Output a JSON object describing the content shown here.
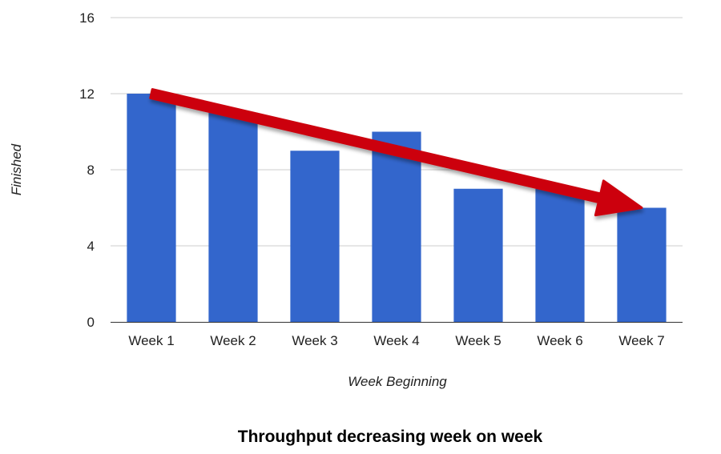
{
  "chart_data": {
    "type": "bar",
    "title": "Throughput decreasing week on week",
    "xlabel": "Week Beginning",
    "ylabel": "Finished",
    "categories": [
      "Week 1",
      "Week 2",
      "Week 3",
      "Week 4",
      "Week 5",
      "Week 6",
      "Week 7"
    ],
    "values": [
      12,
      11,
      9,
      10,
      7,
      7,
      6
    ],
    "ylim": [
      0,
      16
    ],
    "yticks": [
      0,
      4,
      8,
      12,
      16
    ],
    "grid": true,
    "legend": "none",
    "bar_color": "#3366CC",
    "annotation": {
      "type": "trend-arrow",
      "from": {
        "category": "Week 1",
        "value": 12
      },
      "to": {
        "category": "Week 7",
        "value": 6
      },
      "color": "#CC0011"
    }
  }
}
